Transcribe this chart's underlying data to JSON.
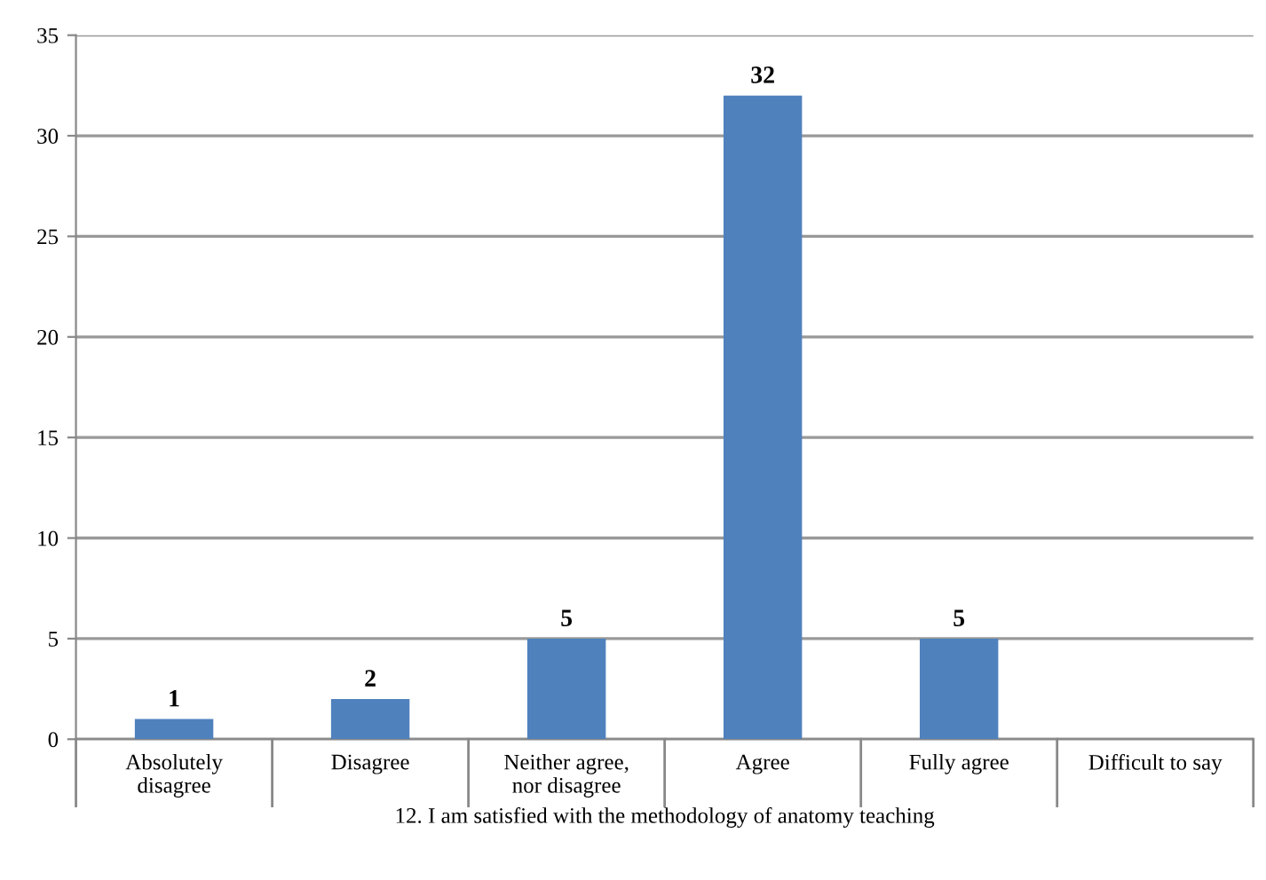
{
  "chart_data": {
    "type": "bar",
    "xlabel": "12. I am satisfied with the methodology of anatomy teaching",
    "categories": [
      "Absolutely disagree",
      "Disagree",
      "Neither agree, nor disagree",
      "Agree",
      "Fully agree",
      "Difficult to say"
    ],
    "values": [
      1,
      2,
      5,
      32,
      5,
      0
    ],
    "value_labels": [
      "1",
      "2",
      "5",
      "32",
      "5",
      null
    ],
    "color": "#4f81bd",
    "ylim": [
      0,
      35
    ],
    "yticks": [
      0,
      5,
      10,
      15,
      20,
      25,
      30,
      35
    ],
    "grid": "y",
    "legend": false
  }
}
